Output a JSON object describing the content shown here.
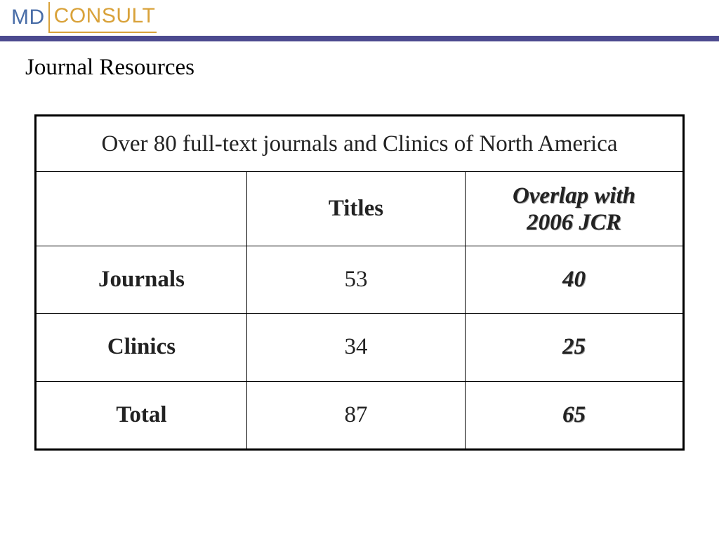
{
  "logo": {
    "part1": "MD",
    "part2": "CONSULT"
  },
  "page_title": "Journal Resources",
  "table": {
    "caption": "Over 80 full-text journals and Clinics of North America",
    "headers": {
      "label": "",
      "titles": "Titles",
      "overlap_line1": "Overlap with",
      "overlap_line2": "2006 JCR"
    },
    "rows": [
      {
        "label": "Journals",
        "titles": "53",
        "overlap": "40"
      },
      {
        "label": "Clinics",
        "titles": "34",
        "overlap": "25"
      },
      {
        "label": "Total",
        "titles": "87",
        "overlap": "65"
      }
    ]
  },
  "colors": {
    "brand_blue": "#4a6ea8",
    "brand_gold": "#d9a23a",
    "rule": "#4c4a8f",
    "overlap_red": "#e8151b"
  }
}
